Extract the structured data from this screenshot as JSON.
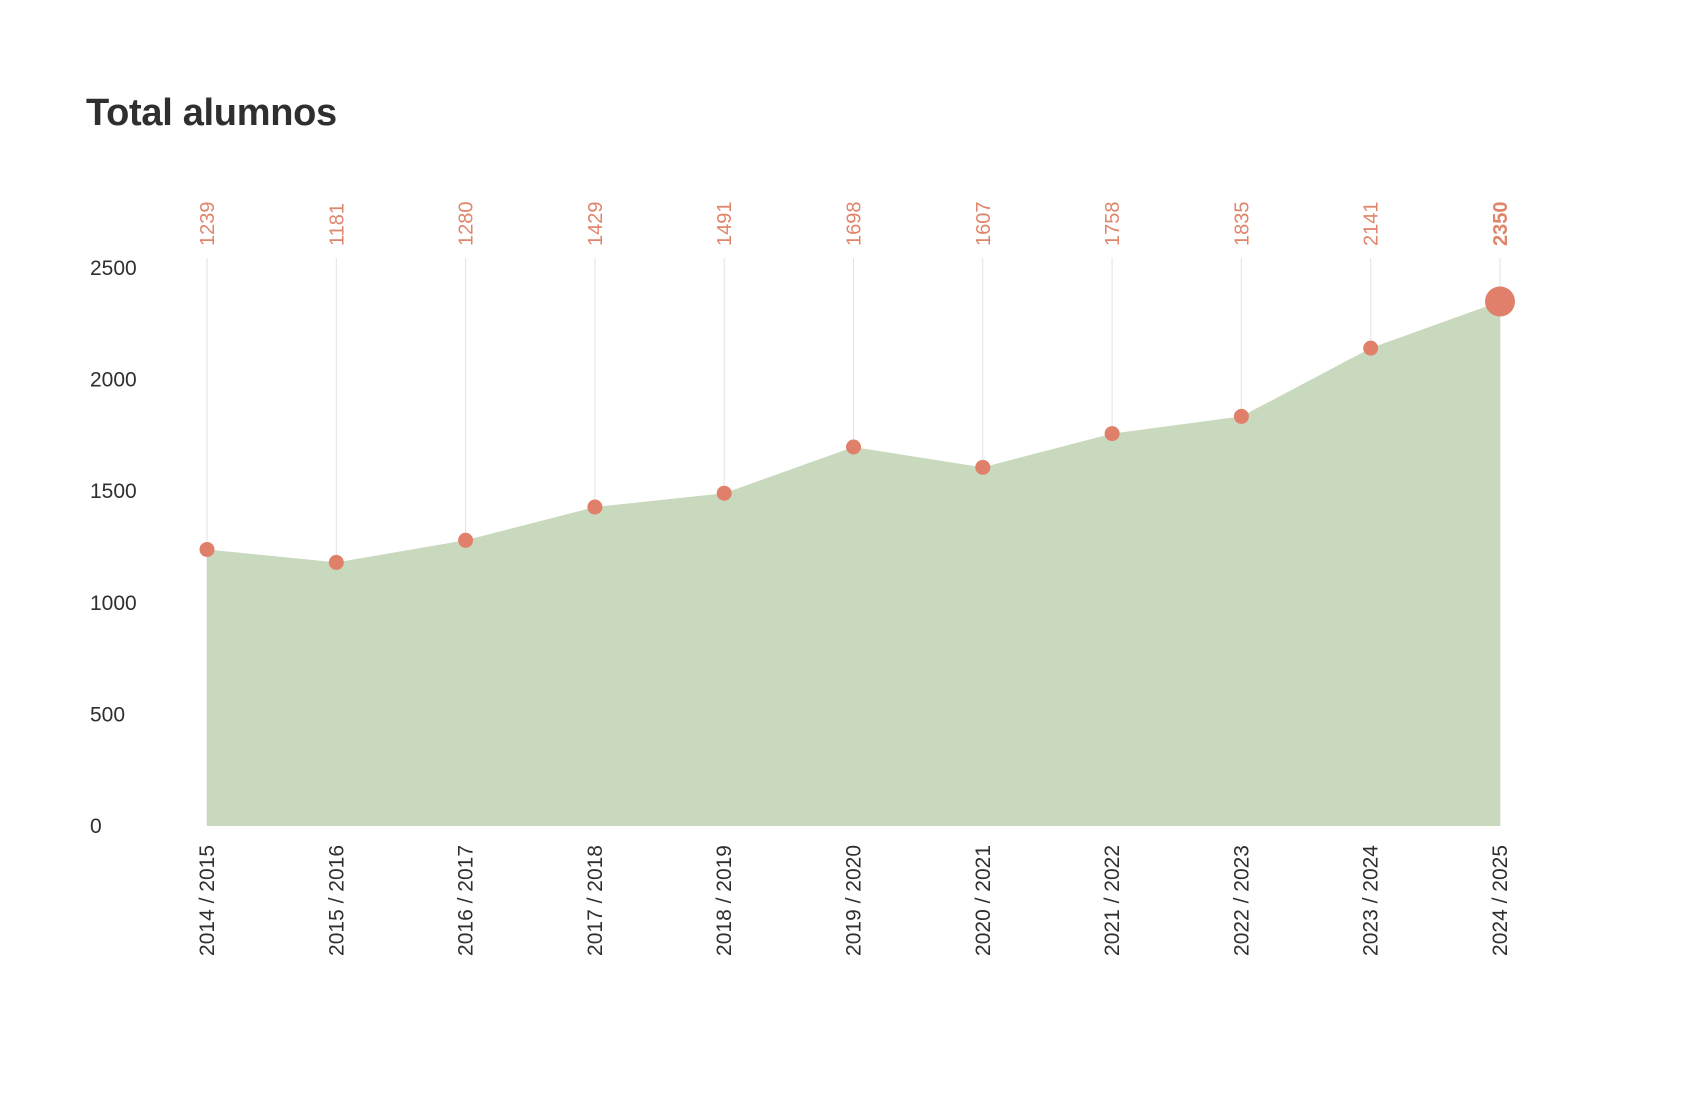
{
  "title": "Total alumnos",
  "colors": {
    "area": "#c6d8bc",
    "marker": "#e0806a",
    "grid": "#e2e2e2",
    "text": "#2f2f2f"
  },
  "chart_data": {
    "type": "area",
    "title": "Total alumnos",
    "xlabel": "",
    "ylabel": "",
    "categories": [
      "2014 / 2015",
      "2015 / 2016",
      "2016 / 2017",
      "2017 / 2018",
      "2018 / 2019",
      "2019 / 2020",
      "2020 / 2021",
      "2021 / 2022",
      "2022 / 2023",
      "2023 / 2024",
      "2024 / 2025"
    ],
    "values": [
      1239,
      1181,
      1280,
      1429,
      1491,
      1698,
      1607,
      1758,
      1835,
      2141,
      2350
    ],
    "value_labels": [
      "1239",
      "1181",
      "1280",
      "1429",
      "1491",
      "1698",
      "1607",
      "1758",
      "1835",
      "2141",
      "2350"
    ],
    "y_ticks": [
      "0",
      "500",
      "1000",
      "1500",
      "2000",
      "2500"
    ],
    "ylim": [
      0,
      2500
    ],
    "grid": "vertical",
    "highlight_last": true,
    "legend": "none"
  }
}
